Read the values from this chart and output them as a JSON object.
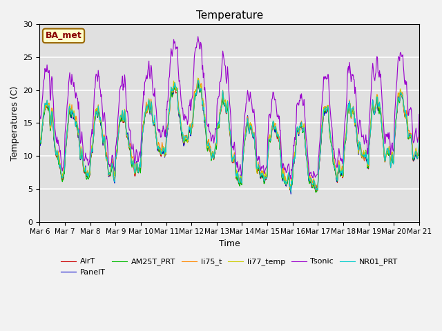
{
  "title": "Temperature",
  "ylabel": "Temperatures (C)",
  "xlabel": "Time",
  "annotation": "BA_met",
  "ylim": [
    0,
    30
  ],
  "series": {
    "AirT": {
      "color": "#cc0000",
      "lw": 0.8
    },
    "PanelT": {
      "color": "#0000cc",
      "lw": 0.8
    },
    "AM25T_PRT": {
      "color": "#00bb00",
      "lw": 0.8
    },
    "li75_t": {
      "color": "#ff8800",
      "lw": 0.8
    },
    "li77_temp": {
      "color": "#cccc00",
      "lw": 0.8
    },
    "Tsonic": {
      "color": "#9900cc",
      "lw": 0.8
    },
    "NR01_PRT": {
      "color": "#00cccc",
      "lw": 0.8
    }
  },
  "bg_color": "#e0e0e0",
  "grid_color": "#ffffff",
  "fig_color": "#f2f2f2"
}
